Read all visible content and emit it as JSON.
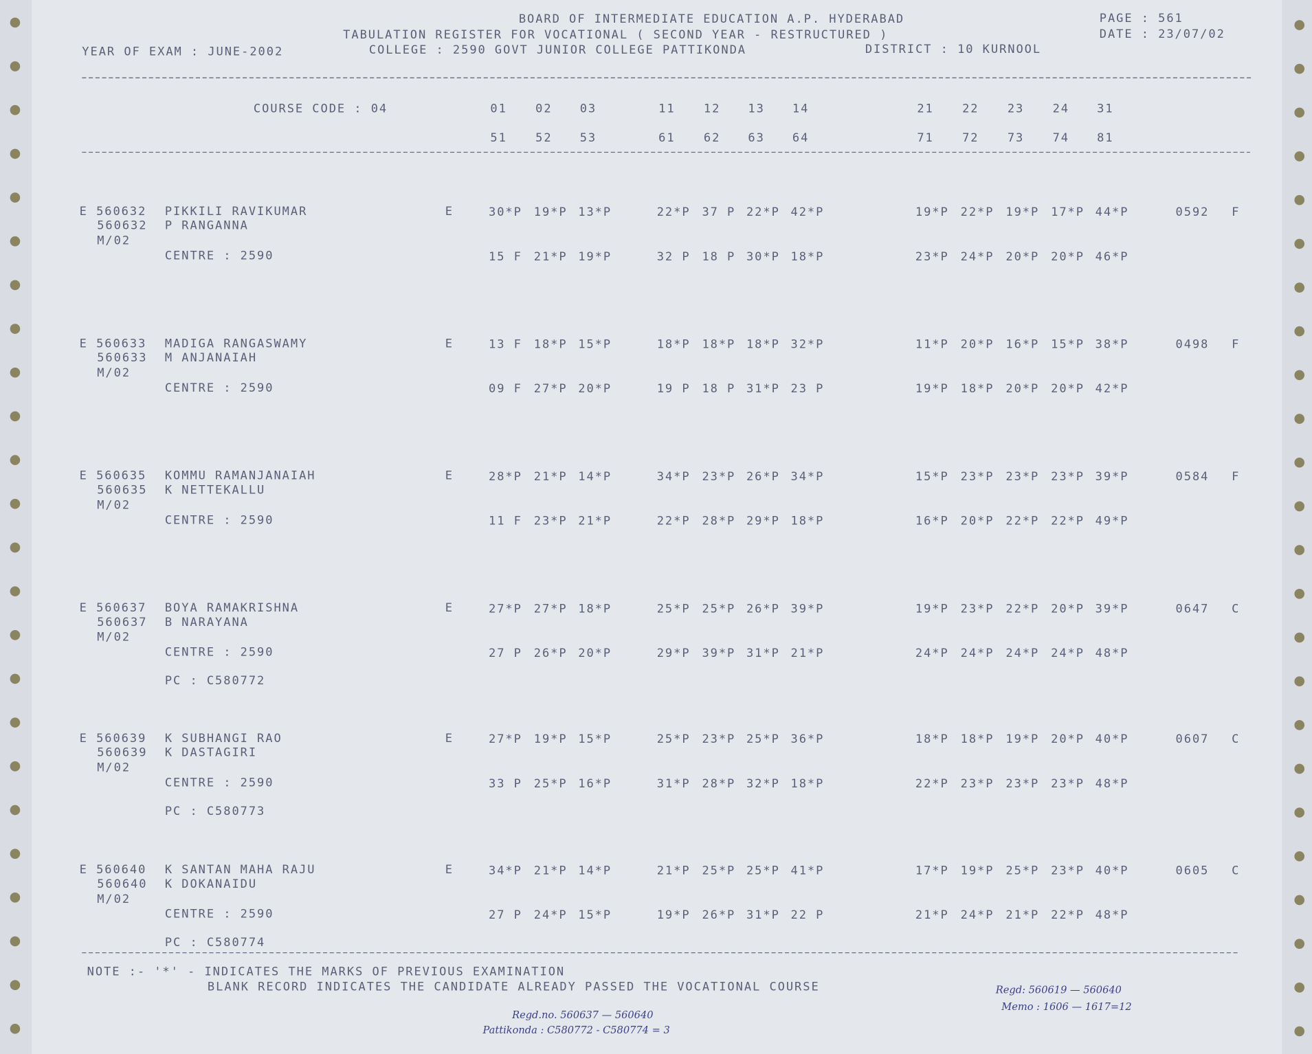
{
  "header": {
    "line1": "BOARD OF INTERMEDIATE EDUCATION   A.P.  HYDERABAD",
    "line2": "TABULATION REGISTER FOR VOCATIONAL  ( SECOND YEAR -    RESTRUCTURED )",
    "line3": "COLLEGE : 2590  GOVT JUNIOR COLLEGE PATTIKONDA",
    "district": "DISTRICT : 10  KURNOOL",
    "year": "YEAR OF EXAM : JUNE-2002",
    "page": "PAGE :    561",
    "date": "DATE : 23/07/02"
  },
  "course_code": "COURSE CODE : 04",
  "codes_row1": [
    "01",
    "02",
    "03",
    "11",
    "12",
    "13",
    "14",
    "21",
    "22",
    "23",
    "24",
    "31"
  ],
  "codes_row2": [
    "51",
    "52",
    "53",
    "61",
    "62",
    "63",
    "64",
    "71",
    "72",
    "73",
    "74",
    "81"
  ],
  "records": [
    {
      "id": "E 560632",
      "reg": "560632",
      "month": "M/02",
      "name": "PIKKILI RAVIKUMAR",
      "father": "P RANGANNA",
      "medium": "E",
      "centre": "CENTRE :   2590",
      "marks1": [
        "30*P",
        "19*P",
        "13*P",
        "22*P",
        "37 P",
        "22*P",
        "42*P",
        "19*P",
        "22*P",
        "19*P",
        "17*P",
        "44*P"
      ],
      "marks2": [
        "15 F",
        "21*P",
        "19*P",
        "32 P",
        "18 P",
        "30*P",
        "18*P",
        "23*P",
        "24*P",
        "20*P",
        "20*P",
        "46*P"
      ],
      "total": "0592",
      "result": "F"
    },
    {
      "id": "E 560633",
      "reg": "560633",
      "month": "M/02",
      "name": "MADIGA RANGASWAMY",
      "father": "M ANJANAIAH",
      "medium": "E",
      "centre": "CENTRE :   2590",
      "marks1": [
        "13 F",
        "18*P",
        "15*P",
        "18*P",
        "18*P",
        "18*P",
        "32*P",
        "11*P",
        "20*P",
        "16*P",
        "15*P",
        "38*P"
      ],
      "marks2": [
        "09 F",
        "27*P",
        "20*P",
        "19 P",
        "18 P",
        "31*P",
        "23 P",
        "19*P",
        "18*P",
        "20*P",
        "20*P",
        "42*P"
      ],
      "total": "0498",
      "result": "F"
    },
    {
      "id": "E 560635",
      "reg": "560635",
      "month": "M/02",
      "name": "KOMMU RAMANJANAIAH",
      "father": "K NETTEKALLU",
      "medium": "E",
      "centre": "CENTRE :   2590",
      "marks1": [
        "28*P",
        "21*P",
        "14*P",
        "34*P",
        "23*P",
        "26*P",
        "34*P",
        "15*P",
        "23*P",
        "23*P",
        "23*P",
        "39*P"
      ],
      "marks2": [
        "11 F",
        "23*P",
        "21*P",
        "22*P",
        "28*P",
        "29*P",
        "18*P",
        "16*P",
        "20*P",
        "22*P",
        "22*P",
        "49*P"
      ],
      "total": "0584",
      "result": "F"
    },
    {
      "id": "E 560637",
      "reg": "560637",
      "month": "M/02",
      "name": "BOYA RAMAKRISHNA",
      "father": "B NARAYANA",
      "medium": "E",
      "centre": "CENTRE :   2590",
      "pc": "PC :    C580772",
      "marks1": [
        "27*P",
        "27*P",
        "18*P",
        "25*P",
        "25*P",
        "26*P",
        "39*P",
        "19*P",
        "23*P",
        "22*P",
        "20*P",
        "39*P"
      ],
      "marks2": [
        "27 P",
        "26*P",
        "20*P",
        "29*P",
        "39*P",
        "31*P",
        "21*P",
        "24*P",
        "24*P",
        "24*P",
        "24*P",
        "48*P"
      ],
      "total": "0647",
      "result": "C"
    },
    {
      "id": "E 560639",
      "reg": "560639",
      "month": "M/02",
      "name": "K SUBHANGI RAO",
      "father": "K DASTAGIRI",
      "medium": "E",
      "centre": "CENTRE :   2590",
      "pc": "PC :    C580773",
      "marks1": [
        "27*P",
        "19*P",
        "15*P",
        "25*P",
        "23*P",
        "25*P",
        "36*P",
        "18*P",
        "18*P",
        "19*P",
        "20*P",
        "40*P"
      ],
      "marks2": [
        "33 P",
        "25*P",
        "16*P",
        "31*P",
        "28*P",
        "32*P",
        "18*P",
        "22*P",
        "23*P",
        "23*P",
        "23*P",
        "48*P"
      ],
      "total": "0607",
      "result": "C"
    },
    {
      "id": "E 560640",
      "reg": "560640",
      "month": "M/02",
      "name": "K SANTAN MAHA RAJU",
      "father": "K DOKANAIDU",
      "medium": "E",
      "centre": "CENTRE :   2590",
      "pc": "PC :    C580774",
      "marks1": [
        "34*P",
        "21*P",
        "14*P",
        "21*P",
        "25*P",
        "25*P",
        "41*P",
        "17*P",
        "19*P",
        "25*P",
        "23*P",
        "40*P"
      ],
      "marks2": [
        "27 P",
        "24*P",
        "15*P",
        "19*P",
        "26*P",
        "31*P",
        "22 P",
        "21*P",
        "24*P",
        "21*P",
        "22*P",
        "48*P"
      ],
      "total": "0605",
      "result": "C"
    }
  ],
  "note": {
    "line1": "NOTE :- '*' - INDICATES THE MARKS OF PREVIOUS EXAMINATION",
    "line2": "BLANK RECORD INDICATES THE CANDIDATE  ALREADY PASSED THE VOCATIONAL COURSE"
  },
  "handwritten": {
    "regd": "Regd.no. 560637 — 560640",
    "pc": "Pattikonda : C580772 - C580774 = 3",
    "right1": "Regd: 560619 — 560640",
    "right2": "Memo : 1606 — 1617=12"
  }
}
